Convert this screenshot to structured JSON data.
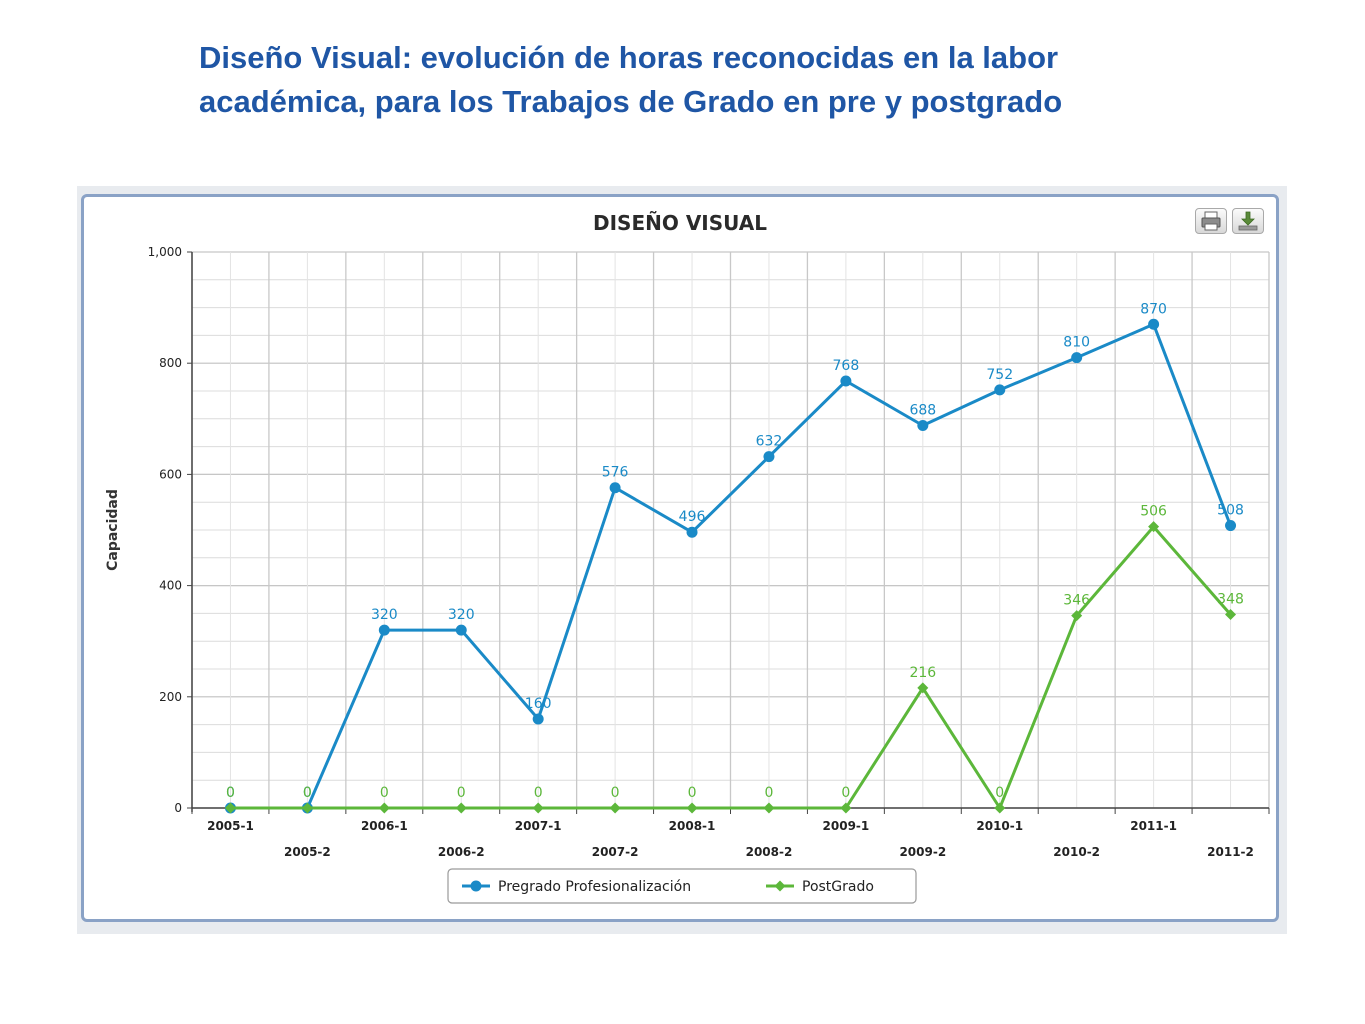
{
  "slide": {
    "title_bold": "Diseño Visual:",
    "title_rest": " evolución de horas reconocidas en la labor académica, para los Trabajos de Grado en pre y postgrado"
  },
  "toolbar": {
    "print_icon": "printer-icon",
    "download_icon": "download-icon"
  },
  "chart_data": {
    "type": "line",
    "title": "DISEÑO VISUAL",
    "ylabel": "Capacidad",
    "xlabel": "",
    "ylim": [
      0,
      1000
    ],
    "yticks": [
      "0",
      "200",
      "400",
      "600",
      "800",
      "1,000"
    ],
    "categories": [
      "2005-1",
      "2005-2",
      "2006-1",
      "2006-2",
      "2007-1",
      "2007-2",
      "2008-1",
      "2008-2",
      "2009-1",
      "2009-2",
      "2010-1",
      "2010-2",
      "2011-1",
      "2011-2"
    ],
    "grid": true,
    "legend_position": "bottom-center",
    "series": [
      {
        "name": "Pregrado Profesionalización",
        "color": "#1a8ac7",
        "marker": "circle",
        "values": [
          0,
          0,
          320,
          320,
          160,
          576,
          496,
          632,
          768,
          688,
          752,
          810,
          870,
          508
        ],
        "labels": [
          "0",
          "0",
          "320",
          "320",
          "160",
          "576",
          "496",
          "632",
          "768",
          "688",
          "752",
          "810",
          "870",
          "508"
        ]
      },
      {
        "name": "PostGrado",
        "color": "#5cb73a",
        "marker": "diamond",
        "values": [
          0,
          0,
          0,
          0,
          0,
          0,
          0,
          0,
          0,
          216,
          0,
          346,
          506,
          348
        ],
        "labels": [
          "0",
          "0",
          "0",
          "0",
          "0",
          "0",
          "0",
          "0",
          "0",
          "216",
          "0",
          "346",
          "506",
          "348"
        ]
      }
    ]
  }
}
